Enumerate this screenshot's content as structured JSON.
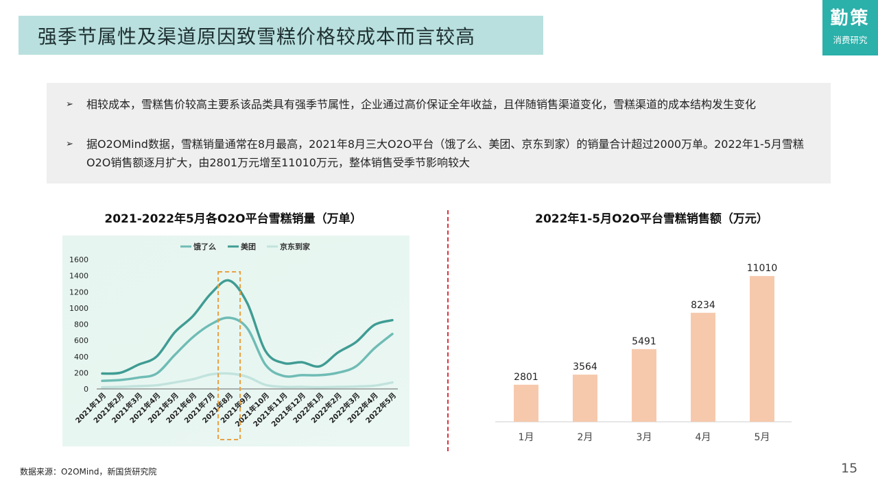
{
  "slide": {
    "title": "强季节属性及渠道原因致雪糕价格较成本而言较高",
    "logo_main": "勤策",
    "logo_sub": "消费研究",
    "bullets": [
      "相较成本，雪糕售价较高主要系该品类具有强季节属性，企业通过高价保证全年收益，且伴随销售渠道变化，雪糕渠道的成本结构发生变化",
      "据O2OMind数据，雪糕销量通常在8月最高，2021年8月三大O2O平台（饿了么、美团、京东到家）的销量合计超过2000万单。2022年1-5月雪糕O2O销售额逐月扩大，由2801万元增至11010万元，整体销售受季节影响较大"
    ],
    "bullet_marker": "➢",
    "footer": "数据来源：O2OMind，新国货研究院",
    "page_number": "15"
  },
  "chart_data": [
    {
      "type": "line",
      "title": "2021-2022年5月各O2O平台雪糕销量（万单）",
      "categories": [
        "2021年1月",
        "2021年2月",
        "2021年3月",
        "2021年4月",
        "2021年5月",
        "2021年6月",
        "2021年7月",
        "2021年8月",
        "2021年9月",
        "2021年10月",
        "2021年11月",
        "2021年12月",
        "2022年1月",
        "2022年2月",
        "2022年3月",
        "2022年4月",
        "2022年5月"
      ],
      "yticks": [
        0,
        200,
        400,
        600,
        800,
        1000,
        1200,
        1400,
        1600
      ],
      "ylim": [
        0,
        1600
      ],
      "legend_position": "top",
      "grid": false,
      "series": [
        {
          "name": "饿了么",
          "color": "#6fbcb5",
          "values": [
            100,
            110,
            140,
            190,
            420,
            640,
            800,
            880,
            750,
            300,
            160,
            170,
            170,
            200,
            280,
            500,
            680
          ]
        },
        {
          "name": "美团",
          "color": "#3f9c93",
          "values": [
            190,
            200,
            300,
            400,
            700,
            900,
            1180,
            1340,
            1060,
            470,
            320,
            330,
            280,
            450,
            580,
            790,
            850
          ]
        },
        {
          "name": "京东到家",
          "color": "#c2e3dd",
          "values": [
            20,
            25,
            35,
            45,
            80,
            120,
            180,
            190,
            150,
            50,
            25,
            25,
            20,
            25,
            30,
            40,
            80
          ]
        }
      ],
      "highlight_category": "2021年8月",
      "highlight_color": "#e8a040"
    },
    {
      "type": "bar",
      "title": "2022年1-5月O2O平台雪糕销售额（万元）",
      "categories": [
        "1月",
        "2月",
        "3月",
        "4月",
        "5月"
      ],
      "values": [
        2801,
        3564,
        5491,
        8234,
        11010
      ],
      "bar_color": "#f6c9ad",
      "ylim": [
        0,
        12000
      ]
    }
  ]
}
